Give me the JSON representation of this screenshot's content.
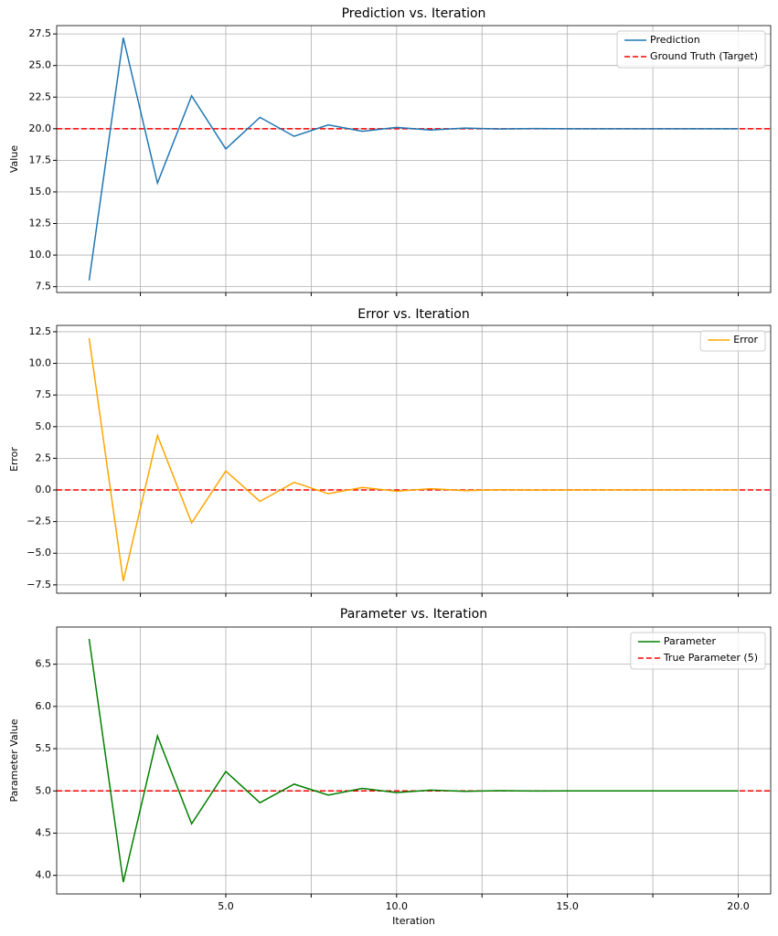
{
  "chart_data": [
    {
      "type": "line",
      "title": "Prediction vs. Iteration",
      "y_label": "Value",
      "x": [
        1,
        2,
        3,
        4,
        5,
        6,
        7,
        8,
        9,
        10,
        11,
        12,
        13,
        14,
        15,
        16,
        17,
        18,
        19,
        20
      ],
      "series": [
        {
          "name": "Prediction",
          "color": "#1f77b4",
          "values": [
            8.0,
            27.2,
            15.7,
            22.6,
            18.4,
            20.9,
            19.4,
            20.3,
            19.8,
            20.1,
            19.9,
            20.05,
            19.98,
            20.01,
            20.0,
            20.0,
            20.0,
            20.0,
            20.0,
            20.0
          ]
        }
      ],
      "hlines": [
        {
          "name": "Ground Truth (Target)",
          "color": "#ff0000",
          "value": 20
        }
      ],
      "xlim": [
        0.05,
        20.95
      ],
      "xticks": [
        2.5,
        5,
        7.5,
        10,
        12.5,
        15,
        17.5,
        20
      ],
      "ylim": [
        7.04,
        28.16
      ],
      "yticks": [
        7.5,
        {
          "value": 10,
          "label": "10.0"
        },
        12.5,
        {
          "value": 15,
          "label": "15.0"
        },
        17.5,
        {
          "value": 20,
          "label": "20.0"
        },
        22.5,
        {
          "value": 25,
          "label": "25.0"
        },
        27.5
      ],
      "grid": true,
      "legend": "upper right"
    },
    {
      "type": "line",
      "title": "Error vs. Iteration",
      "y_label": "Error",
      "x": [
        1,
        2,
        3,
        4,
        5,
        6,
        7,
        8,
        9,
        10,
        11,
        12,
        13,
        14,
        15,
        16,
        17,
        18,
        19,
        20
      ],
      "series": [
        {
          "name": "Error",
          "color": "#ffa500",
          "values": [
            12.0,
            -7.2,
            4.3,
            -2.6,
            1.5,
            -0.9,
            0.6,
            -0.3,
            0.2,
            -0.1,
            0.1,
            -0.05,
            0.02,
            -0.01,
            0.0,
            0.0,
            0.0,
            0.0,
            0.0,
            0.0
          ]
        }
      ],
      "hlines": [
        {
          "color": "#ff0000",
          "value": 0
        }
      ],
      "xlim": [
        0.05,
        20.95
      ],
      "xticks": [
        2.5,
        5,
        7.5,
        10,
        12.5,
        15,
        17.5,
        20
      ],
      "ylim": [
        -8.16,
        13.0
      ],
      "yticks": [
        {
          "value": -7.5,
          "label": "−7.5"
        },
        {
          "value": -5,
          "label": "−5.0"
        },
        {
          "value": -2.5,
          "label": "−2.5"
        },
        {
          "value": 0,
          "label": "0.0"
        },
        2.5,
        {
          "value": 5,
          "label": "5.0"
        },
        7.5,
        {
          "value": 10,
          "label": "10.0"
        },
        12.5
      ],
      "grid": true,
      "legend": "upper right"
    },
    {
      "type": "line",
      "title": "Parameter vs. Iteration",
      "x_label": "Iteration",
      "y_label": "Parameter Value",
      "x": [
        1,
        2,
        3,
        4,
        5,
        6,
        7,
        8,
        9,
        10,
        11,
        12,
        13,
        14,
        15,
        16,
        17,
        18,
        19,
        20
      ],
      "series": [
        {
          "name": "Parameter",
          "color": "#008000",
          "values": [
            6.8,
            3.92,
            5.65,
            4.61,
            5.23,
            4.86,
            5.08,
            4.95,
            5.03,
            4.98,
            5.01,
            4.995,
            5.003,
            4.999,
            5.0,
            5.0,
            5.0,
            5.0,
            5.0,
            5.0
          ]
        }
      ],
      "hlines": [
        {
          "name": "True Parameter (5)",
          "color": "#ff0000",
          "value": 5
        }
      ],
      "xlim": [
        0.05,
        20.95
      ],
      "xticks": [
        2.5,
        {
          "value": 5,
          "label": "5.0"
        },
        7.5,
        {
          "value": 10,
          "label": "10.0"
        },
        12.5,
        {
          "value": 15,
          "label": "15.0"
        },
        17.5,
        {
          "value": 20,
          "label": "20.0"
        }
      ],
      "ylim": [
        3.78,
        6.94
      ],
      "yticks": [
        {
          "value": 4,
          "label": "4.0"
        },
        4.5,
        {
          "value": 5,
          "label": "5.0"
        },
        5.5,
        {
          "value": 6,
          "label": "6.0"
        },
        6.5
      ],
      "grid": true,
      "legend": "upper right"
    }
  ]
}
